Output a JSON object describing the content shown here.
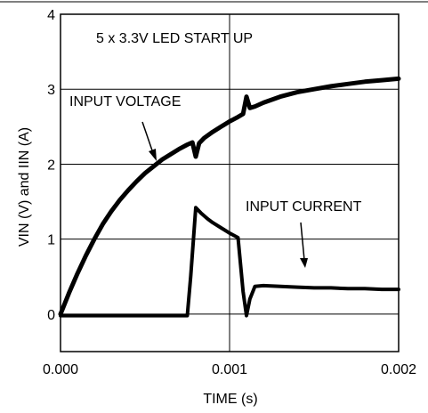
{
  "chart_data": {
    "type": "line",
    "title": "5 x 3.3V LED START UP",
    "xlabel": "TIME (s)",
    "ylabel": "VIN (V) and IIN (A)",
    "xlim": [
      0,
      0.002
    ],
    "ylim": [
      -0.5,
      4
    ],
    "xticks": [
      "0.000",
      "0.001",
      "0.002"
    ],
    "yticks": [
      "0",
      "1",
      "2",
      "3",
      "4"
    ],
    "grid": true,
    "series": [
      {
        "name": "INPUT VOLTAGE",
        "x": [
          0,
          5e-05,
          0.0001,
          0.00015,
          0.0002,
          0.00025,
          0.0003,
          0.00035,
          0.0004,
          0.00045,
          0.0005,
          0.00055,
          0.0006,
          0.00065,
          0.0007,
          0.00075,
          0.00078,
          0.0008,
          0.00082,
          0.00085,
          0.0009,
          0.00095,
          0.001,
          0.00105,
          0.00108,
          0.0011,
          0.00112,
          0.00115,
          0.0012,
          0.00125,
          0.0013,
          0.0014,
          0.0015,
          0.0016,
          0.0017,
          0.0018,
          0.0019,
          0.002
        ],
        "y": [
          0.0,
          0.28,
          0.54,
          0.78,
          1.0,
          1.2,
          1.37,
          1.52,
          1.65,
          1.77,
          1.88,
          1.97,
          2.06,
          2.13,
          2.2,
          2.26,
          2.29,
          2.1,
          2.28,
          2.35,
          2.43,
          2.5,
          2.57,
          2.63,
          2.67,
          2.9,
          2.75,
          2.77,
          2.82,
          2.86,
          2.9,
          2.96,
          3.0,
          3.04,
          3.07,
          3.1,
          3.12,
          3.14
        ]
      },
      {
        "name": "INPUT CURRENT",
        "x": [
          0,
          0.0001,
          0.0002,
          0.0003,
          0.0004,
          0.0005,
          0.0006,
          0.0007,
          0.00075,
          0.00077,
          0.0008,
          0.00083,
          0.00087,
          0.0009,
          0.00095,
          0.001,
          0.00105,
          0.00108,
          0.0011,
          0.00112,
          0.00115,
          0.0012,
          0.0013,
          0.0014,
          0.0015,
          0.0016,
          0.0017,
          0.0018,
          0.0019,
          0.002
        ],
        "y": [
          -0.02,
          -0.02,
          -0.02,
          -0.02,
          -0.02,
          -0.02,
          -0.02,
          -0.02,
          -0.02,
          0.5,
          1.42,
          1.35,
          1.27,
          1.22,
          1.15,
          1.08,
          1.02,
          0.3,
          -0.02,
          0.2,
          0.37,
          0.38,
          0.37,
          0.36,
          0.35,
          0.35,
          0.34,
          0.34,
          0.33,
          0.33
        ]
      }
    ],
    "annotations": [
      "INPUT VOLTAGE",
      "INPUT CURRENT"
    ]
  }
}
